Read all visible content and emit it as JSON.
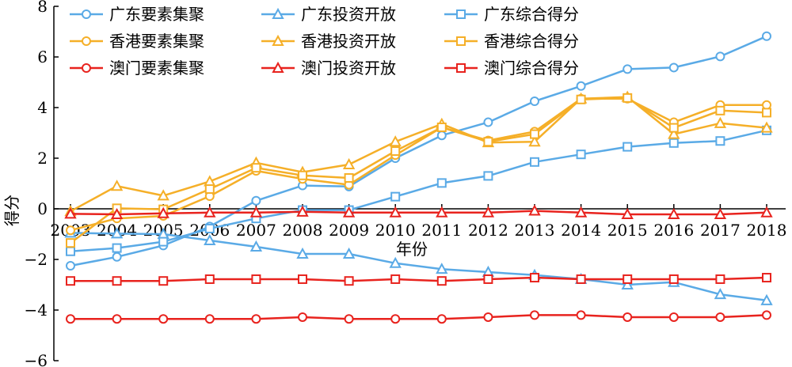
{
  "chart_data": {
    "type": "line",
    "title": "",
    "xlabel": "年份",
    "ylabel": "得分",
    "ylim": [
      -6,
      8
    ],
    "yticks": [
      -6,
      -4,
      -2,
      0,
      2,
      4,
      6,
      8
    ],
    "ytick_labels": [
      "−6",
      "−4",
      "−2",
      "0",
      "2",
      "4",
      "6",
      "8"
    ],
    "x": [
      "2003",
      "2004",
      "2005",
      "2006",
      "2007",
      "2008",
      "2009",
      "2010",
      "2011",
      "2012",
      "2013",
      "2014",
      "2015",
      "2016",
      "2017",
      "2018"
    ],
    "grid": false,
    "legend_position": "top",
    "series": [
      {
        "name": "广东要素集聚",
        "color": "#5AAAE6",
        "marker": "circle",
        "values": [
          -2.25,
          -1.9,
          -1.45,
          -0.7,
          0.32,
          0.92,
          0.88,
          2.0,
          2.9,
          3.42,
          4.25,
          4.85,
          5.52,
          5.58,
          6.02,
          6.82
        ]
      },
      {
        "name": "广东投资开放",
        "color": "#5AAAE6",
        "marker": "triangle",
        "values": [
          -0.95,
          -0.98,
          -1.0,
          -1.25,
          -1.5,
          -1.78,
          -1.78,
          -2.15,
          -2.38,
          -2.5,
          -2.62,
          -2.78,
          -3.0,
          -2.9,
          -3.38,
          -3.62
        ]
      },
      {
        "name": "广东综合得分",
        "color": "#5AAAE6",
        "marker": "square",
        "values": [
          -1.68,
          -1.55,
          -1.3,
          -0.78,
          -0.38,
          -0.05,
          -0.05,
          0.48,
          1.02,
          1.3,
          1.85,
          2.15,
          2.45,
          2.6,
          2.68,
          3.1
        ]
      },
      {
        "name": "香港要素集聚",
        "color": "#F5AF28",
        "marker": "circle",
        "values": [
          -0.85,
          -0.38,
          -0.28,
          0.5,
          1.5,
          1.18,
          0.95,
          2.12,
          3.22,
          2.7,
          3.05,
          4.35,
          4.35,
          3.42,
          4.1,
          4.1
        ]
      },
      {
        "name": "香港投资开放",
        "color": "#F5AF28",
        "marker": "triangle",
        "values": [
          -0.1,
          0.9,
          0.52,
          1.08,
          1.82,
          1.45,
          1.75,
          2.65,
          3.35,
          2.62,
          2.65,
          4.35,
          4.42,
          2.95,
          3.38,
          3.2
        ]
      },
      {
        "name": "香港综合得分",
        "color": "#F5AF28",
        "marker": "square",
        "values": [
          -1.35,
          0.02,
          -0.02,
          0.78,
          1.62,
          1.32,
          1.22,
          2.28,
          3.22,
          2.65,
          2.95,
          4.32,
          4.38,
          3.2,
          3.88,
          3.8
        ]
      },
      {
        "name": "澳门要素集聚",
        "color": "#E8231E",
        "marker": "circle",
        "values": [
          -4.35,
          -4.35,
          -4.35,
          -4.35,
          -4.35,
          -4.28,
          -4.35,
          -4.35,
          -4.35,
          -4.28,
          -4.2,
          -4.2,
          -4.28,
          -4.28,
          -4.28,
          -4.2
        ]
      },
      {
        "name": "澳门投资开放",
        "color": "#E8231E",
        "marker": "triangle",
        "values": [
          -0.2,
          -0.22,
          -0.18,
          -0.15,
          -0.15,
          -0.12,
          -0.15,
          -0.15,
          -0.15,
          -0.15,
          -0.08,
          -0.15,
          -0.22,
          -0.22,
          -0.22,
          -0.15
        ]
      },
      {
        "name": "澳门综合得分",
        "color": "#E8231E",
        "marker": "square",
        "values": [
          -2.85,
          -2.85,
          -2.85,
          -2.78,
          -2.78,
          -2.78,
          -2.85,
          -2.78,
          -2.85,
          -2.78,
          -2.72,
          -2.78,
          -2.78,
          -2.78,
          -2.78,
          -2.72
        ]
      }
    ]
  }
}
